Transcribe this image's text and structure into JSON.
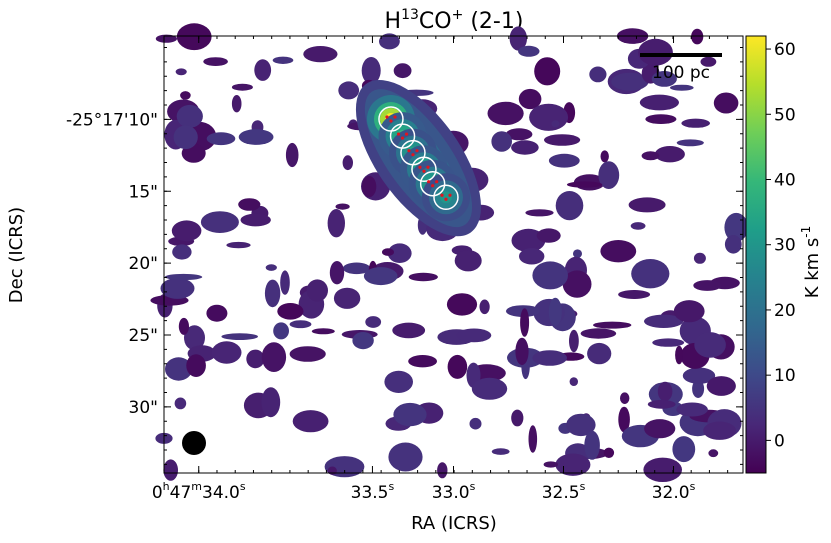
{
  "chart_data": {
    "type": "heatmap",
    "title": {
      "prefix": "H",
      "sup": "13",
      "main": "CO",
      "sup2": "+",
      "suffix": " (2-1)"
    },
    "xlabel": "RA (ICRS)",
    "ylabel": "Dec (ICRS)",
    "x_ticks": [
      {
        "label": "0h47m34.0s",
        "parts": [
          "0",
          "h",
          "47",
          "m",
          "34.0",
          "s"
        ],
        "frac": 0.06
      },
      {
        "label": "33.5s",
        "parts": [
          "33.5",
          "s"
        ],
        "frac": 0.36
      },
      {
        "label": "33.0s",
        "parts": [
          "33.0",
          "s"
        ],
        "frac": 0.5
      },
      {
        "label": "32.5s",
        "parts": [
          "32.5",
          "s"
        ],
        "frac": 0.69
      },
      {
        "label": "32.0s",
        "parts": [
          "32.0",
          "s"
        ],
        "frac": 0.88
      }
    ],
    "y_ticks": [
      {
        "label": "-25°17'10\"",
        "value": 10
      },
      {
        "label": "15\"",
        "value": 15
      },
      {
        "label": "20\"",
        "value": 20
      },
      {
        "label": "25\"",
        "value": 25
      },
      {
        "label": "30\"",
        "value": 30
      }
    ],
    "y_range_arcsec": [
      4.2,
      34.6
    ],
    "colorbar": {
      "label": "K km s",
      "label_sup": "-1",
      "ticks": [
        0,
        10,
        20,
        30,
        40,
        50,
        60
      ],
      "range": [
        -5,
        62
      ],
      "colormap": [
        "#440154",
        "#482878",
        "#3e4989",
        "#31688e",
        "#26828e",
        "#1f9e89",
        "#35b779",
        "#6ece58",
        "#b5de2b",
        "#fde725"
      ]
    },
    "scalebar_label": "100 pc",
    "beam": "filled-circle",
    "apertures": [
      {
        "x": 0.392,
        "y": 0.19,
        "peak": 62
      },
      {
        "x": 0.412,
        "y": 0.229,
        "peak": 40
      },
      {
        "x": 0.43,
        "y": 0.267,
        "peak": 34
      },
      {
        "x": 0.449,
        "y": 0.305,
        "peak": 38
      },
      {
        "x": 0.464,
        "y": 0.338,
        "peak": 36
      },
      {
        "x": 0.487,
        "y": 0.369,
        "peak": 30
      }
    ]
  }
}
